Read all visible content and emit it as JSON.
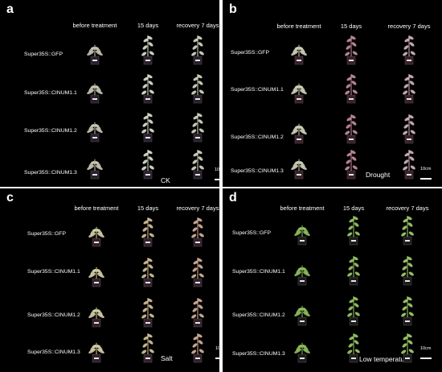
{
  "col_headers": [
    "before treatment",
    "15 days",
    "recovery 7 days"
  ],
  "row_labels": [
    "Super35S::GFP",
    "Super35S::CINUM1.1",
    "Super35S::CINUM1.2",
    "Super35S::CINUM1.3"
  ],
  "scale_label": "10cm",
  "panels": [
    {
      "letter": "a",
      "condition": "CK",
      "colors": [
        "#c9c7b4",
        "#e0e4d2",
        "#d8dcc6"
      ],
      "pot": "#2a1f2e"
    },
    {
      "letter": "b",
      "condition": "Drought",
      "colors": [
        "#cfd2b8",
        "#c98fa0",
        "#d6b7c0"
      ],
      "pot": "#3a1f2a"
    },
    {
      "letter": "c",
      "condition": "Salt",
      "colors": [
        "#d6cfa6",
        "#d9c59a",
        "#d8b49c"
      ],
      "pot": "#33202c"
    },
    {
      "letter": "d",
      "condition": "Low temperature",
      "colors": [
        "#8fbf5f",
        "#9ccb6a",
        "#a6d070"
      ],
      "pot": "#1c1c1c"
    }
  ]
}
